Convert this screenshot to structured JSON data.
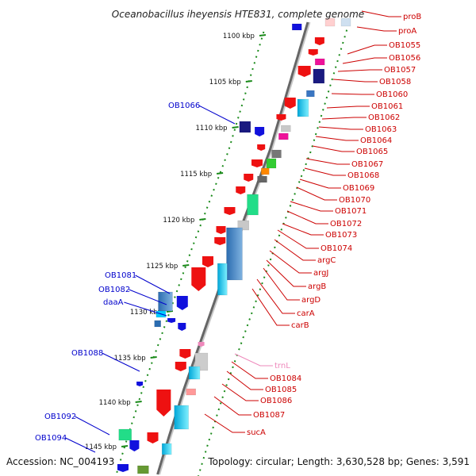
{
  "title": "Oceanobacillus iheyensis HTE831, complete genome",
  "accession": "Accession: NC_004193",
  "topology": "Topology: circular; Length: 3,630,528 bp; Genes: 3,591",
  "colors": {
    "backbone": "#666666",
    "tick_green": "#1a8a1a",
    "gene_red": "#ee1111",
    "gene_blue": "#1111dd",
    "trna_pink": "#ee88bb",
    "label_red": "#cc0000",
    "label_blue": "#0000cc"
  },
  "scale_ticks": [
    "1100 kbp",
    "1105 kbp",
    "1110 kbp",
    "1115 kbp",
    "1120 kbp",
    "1125 kbp",
    "1130 kbp",
    "1135 kbp",
    "1140 kbp",
    "1145 kbp"
  ],
  "right_labels": [
    "proB",
    "proA",
    "OB1055",
    "OB1056",
    "OB1057",
    "OB1058",
    "OB1060",
    "OB1061",
    "OB1062",
    "OB1063",
    "OB1064",
    "OB1065",
    "OB1067",
    "OB1068",
    "OB1069",
    "OB1070",
    "OB1071",
    "OB1072",
    "OB1073",
    "OB1074",
    "argC",
    "argJ",
    "argB",
    "argD",
    "carA",
    "carB",
    "trnL",
    "OB1084",
    "OB1085",
    "OB1086",
    "OB1087",
    "sucA"
  ],
  "left_labels": [
    "OB1066",
    "OB1081",
    "OB1082",
    "daaA",
    "OB1088",
    "OB1092",
    "OB1094"
  ]
}
